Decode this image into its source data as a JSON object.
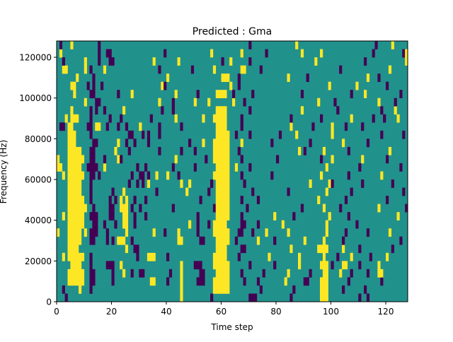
{
  "chart_data": {
    "type": "heatmap",
    "title": "Predicted : Gma",
    "xlabel": "Time step",
    "ylabel": "Frequency (Hz)",
    "xlim": [
      0,
      128
    ],
    "ylim": [
      0,
      128000
    ],
    "n_time_steps": 128,
    "n_freq_bins": 32,
    "freq_bin_width_hz": 4000,
    "xticks": [
      0,
      20,
      40,
      60,
      80,
      100,
      120
    ],
    "xtick_labels": [
      "0",
      "20",
      "40",
      "60",
      "80",
      "100",
      "120"
    ],
    "yticks": [
      0,
      20000,
      40000,
      60000,
      80000,
      100000,
      120000
    ],
    "ytick_labels": [
      "0",
      "20000",
      "40000",
      "60000",
      "80000",
      "100000",
      "120000"
    ],
    "colormap": {
      "background_value": "teal",
      "teal": "#21918c",
      "y": "#fde725",
      "p": "#440154"
    },
    "rows_bottom_to_top_segments": [
      "p3 y45 p56 p70-72 p85 y96-98 p110 p113",
      "p2 y8 p12 y45 y57-62 p74 p86 y96-98 p104 p112",
      "y4-9 p12-13 p20 y34-35 p40 y45 p51-53 y57-62 p68 p73 y83 p90-91 y96-98 p106 p118",
      "y4-9 p12-13 p20 y24 p27 p30-31 y45 p41 p52-53 y58-62 p67 p75 y84 p92 y97-98 y103 p107 p113 y117-118",
      "y5-8 p12 p18-20 y23 y45 p50-52 y57-62 p70 p79 y88 y96-98 p100 y104-105 p110 y117",
      "y2 y4-9 p12 y33-35 p29 p40 y57-61 p66 y77 y88 y97 p102 y107 p114 y120",
      "y4-7 y25 p28-29 p67-68 y58-61 y85 y95-98 y104 p110 p122",
      "y4-8 p12-13 p18 p20 y22-24 p27 y44-45 p52-53 y58-62 p65 y73 p79 y90 y97 p104 p125",
      "y0 y4-8 y10 p12-14 p18 y25 y35 p39 y44 p51 y57-62 p66-67 p71 y76 y84 y98 p105 p113 y121",
      "y4-9 p13-14 p17 p21 y24-25 p28 y48 p51 p55 y57-61 p67-68 p73 y82 y98 p109",
      "y2 y4-9 p12-14 p19-20 y24-25 p28 p32 p51 y58-62 p67 y79 p86 y99 p106 y124",
      "y4-10 p13 p19-20 y23-25 p27 p30 p42 p57 y58-62 p69 p89 y97 p103 y117 p127",
      "y4-9 p12 p19 p21 y23 y25 p28 p32 p52 y58-62 p67 p73 y95 p105 p120",
      "y4-8 p12 p20 y24 p36 y47 p55 y58-62 p71 p84 y98 p107 p126",
      "y4-8 p12 p26 p29 p31 y33 y45 y48 p56 y58-62 p68 y92 y99 p100 p111 p122",
      "y2 y4-9 p12-13 p15 p27 p30-31 p33 y36 y40 p44 y57-62 p67 p78 y96 p106 y118",
      "y0-1 y4-8 p11-14 y17 p29 p32 p42 p50 y58-62 y65 p70 y98 p110 p125",
      "y0 y4-9 p12-13 p17 y22 p23 y43 p54 y57-62 p67 p80 p96 y100 y111 p120",
      "y4-8 p12-13 y21 p26 p37 p45 p50 y57-62 p66 y88 p90 y97 p106 y121",
      "y4-6 p13-14 y22 p25 p28 p33 p48 y53 y57-62 y67 p78 p92 y104 p113",
      "y4-6 p12 p26-27 p31 p33 p37 y58-62 p65 p70 p81 y87 y100 p118 p126",
      "p1-2 y4-5 p11-12 y14-15 p18 p22 p25 y30 p37 p45 y58-61 p67 y85 p93 y100 p105 p111",
      "y3 y5-7 p12 p19 p23 p34 y43 y53 y57-61 p67 p85 p96 y107 p115 p119 y124",
      "y5 p12 p14 p17 y24 p38 p42 y58-61 p70 y89 p102 p118 y123",
      "y10 p14-15 y37 p42 y50 y55 y64 p68 y95 p101 y117 p123",
      "y6 p12-13 p22 y27 y43 p51 y58-61 p64 p71 p89 p107 y112 p125",
      "y5-6 p11 p13 p16 y38 p39 y63 p66 y99 y109 p120",
      "y7 p13 y40 y60-62 p66 y84 p91 y113 p117",
      "y2-3 y10 p12 y17 p37 p49 y57 y67-68 p74 p103 y121",
      "p2 y10 p15 p19-20 y35 y44 p60 y63 p70 y94 p112 y127",
      "y1 p15 p18-19 p39 y56 y67 p76 y89 y96 p115 p126 y127",
      "p1 y5 p15 p70 y87 p116 y122"
    ]
  }
}
